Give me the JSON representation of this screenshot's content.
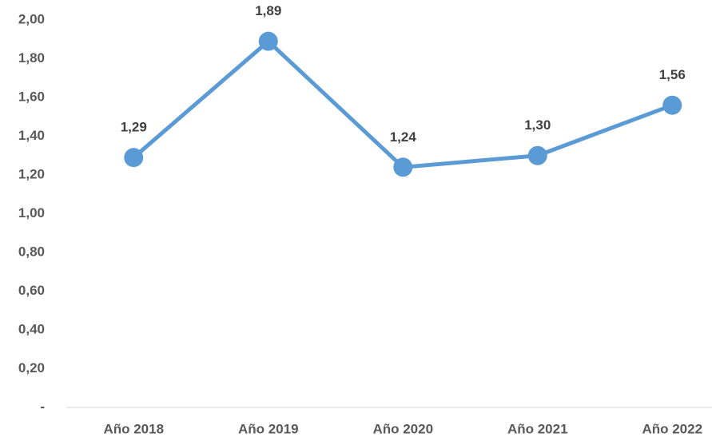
{
  "chart_data": {
    "type": "line",
    "categories": [
      "Año 2018",
      "Año 2019",
      "Año 2020",
      "Año 2021",
      "Año 2022"
    ],
    "series": [
      {
        "color": "#5b9bd5",
        "values": [
          1.29,
          1.89,
          1.24,
          1.3,
          1.56
        ],
        "value_labels": [
          "1,29",
          "1,89",
          "1,24",
          "1,30",
          "1,56"
        ]
      }
    ],
    "ylim": [
      0,
      2
    ],
    "yticks": [
      {
        "value": 0,
        "label": "-"
      },
      {
        "value": 0.2,
        "label": "0,20"
      },
      {
        "value": 0.4,
        "label": "0,40"
      },
      {
        "value": 0.6,
        "label": "0,60"
      },
      {
        "value": 0.8,
        "label": "0,80"
      },
      {
        "value": 1,
        "label": "1,00"
      },
      {
        "value": 1.2,
        "label": "1,20"
      },
      {
        "value": 1.4,
        "label": "1,40"
      },
      {
        "value": 1.6,
        "label": "1,60"
      },
      {
        "value": 1.8,
        "label": "1,80"
      },
      {
        "value": 2,
        "label": "2,00"
      }
    ],
    "grid": false
  }
}
